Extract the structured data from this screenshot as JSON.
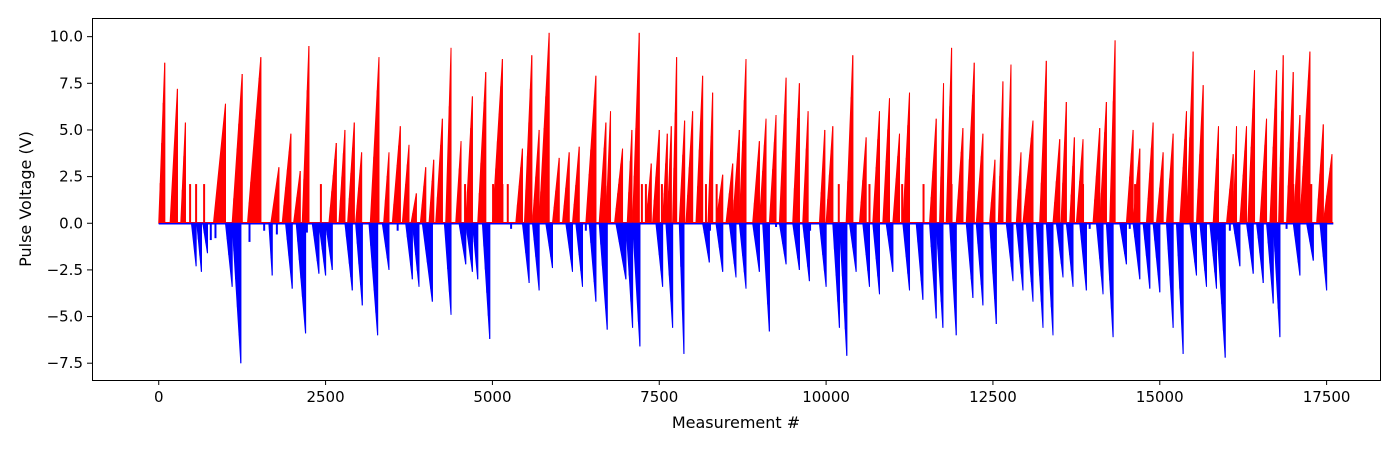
{
  "chart_data": {
    "type": "bar",
    "title": "",
    "xlabel": "Measurement #",
    "ylabel": "Pulse Voltage (V)",
    "xlim": [
      -1000,
      18300
    ],
    "ylim": [
      -8.4,
      11.0
    ],
    "x_ticks": [
      0,
      2500,
      5000,
      7500,
      10000,
      12500,
      15000,
      17500
    ],
    "x_tick_labels": [
      "0",
      "2500",
      "5000",
      "7500",
      "10000",
      "12500",
      "15000",
      "17500"
    ],
    "y_ticks": [
      -7.5,
      -5.0,
      -2.5,
      0.0,
      2.5,
      5.0,
      7.5,
      10.0
    ],
    "y_tick_labels": [
      "−7.5",
      "−5.0",
      "−2.5",
      "0.0",
      "2.5",
      "5.0",
      "7.5",
      "10.0"
    ],
    "grid": false,
    "baseline": 0,
    "series": [
      {
        "sign": "positive",
        "color": "#ff0000",
        "ramps_x0_x1_peak": [
          [
            0,
            90,
            8.6
          ],
          [
            170,
            280,
            7.2
          ],
          [
            330,
            400,
            5.4
          ],
          [
            820,
            1000,
            6.4
          ],
          [
            1100,
            1250,
            8.0
          ],
          [
            1330,
            1530,
            8.9
          ],
          [
            1680,
            1800,
            3.0
          ],
          [
            1850,
            1980,
            4.8
          ],
          [
            2020,
            2120,
            2.8
          ],
          [
            2150,
            2250,
            9.5
          ],
          [
            2550,
            2660,
            4.3
          ],
          [
            2700,
            2790,
            5.0
          ],
          [
            2830,
            2930,
            5.4
          ],
          [
            2950,
            3040,
            3.8
          ],
          [
            3170,
            3300,
            8.9
          ],
          [
            3370,
            3450,
            3.8
          ],
          [
            3500,
            3620,
            5.2
          ],
          [
            3650,
            3750,
            4.2
          ],
          [
            3780,
            3860,
            1.6
          ],
          [
            3920,
            4000,
            3.0
          ],
          [
            4050,
            4120,
            3.4
          ],
          [
            4150,
            4250,
            5.6
          ],
          [
            4300,
            4380,
            9.4
          ],
          [
            4450,
            4530,
            4.4
          ],
          [
            4600,
            4700,
            6.8
          ],
          [
            4780,
            4900,
            8.1
          ],
          [
            5000,
            5150,
            8.8
          ],
          [
            5350,
            5450,
            4.0
          ],
          [
            5480,
            5590,
            9.0
          ],
          [
            5600,
            5700,
            5.0
          ],
          [
            5700,
            5850,
            10.2
          ],
          [
            5900,
            6000,
            3.5
          ],
          [
            6050,
            6150,
            3.8
          ],
          [
            6200,
            6300,
            4.1
          ],
          [
            6400,
            6550,
            7.9
          ],
          [
            6600,
            6700,
            5.4
          ],
          [
            6700,
            6770,
            6.0
          ],
          [
            6830,
            6950,
            4.0
          ],
          [
            7020,
            7090,
            5.0
          ],
          [
            7100,
            7200,
            10.2
          ],
          [
            7300,
            7380,
            3.2
          ],
          [
            7400,
            7500,
            5.0
          ],
          [
            7550,
            7620,
            4.8
          ],
          [
            7620,
            7680,
            5.2
          ],
          [
            7700,
            7760,
            8.9
          ],
          [
            7800,
            7880,
            5.5
          ],
          [
            7900,
            8000,
            6.0
          ],
          [
            8050,
            8150,
            7.9
          ],
          [
            8230,
            8300,
            7.0
          ],
          [
            8350,
            8450,
            2.6
          ],
          [
            8500,
            8600,
            3.2
          ],
          [
            8600,
            8700,
            5.0
          ],
          [
            8700,
            8800,
            8.8
          ],
          [
            8900,
            9000,
            4.4
          ],
          [
            9000,
            9100,
            5.6
          ],
          [
            9150,
            9250,
            5.8
          ],
          [
            9300,
            9400,
            7.8
          ],
          [
            9500,
            9600,
            7.5
          ],
          [
            9650,
            9730,
            6.0
          ],
          [
            9900,
            9980,
            5.0
          ],
          [
            10000,
            10100,
            5.2
          ],
          [
            10300,
            10400,
            9.0
          ],
          [
            10500,
            10600,
            4.6
          ],
          [
            10700,
            10800,
            6.0
          ],
          [
            10850,
            10950,
            6.7
          ],
          [
            11000,
            11100,
            4.8
          ],
          [
            11150,
            11250,
            7.0
          ],
          [
            11550,
            11650,
            5.6
          ],
          [
            11700,
            11760,
            7.5
          ],
          [
            11800,
            11880,
            9.4
          ],
          [
            11950,
            12050,
            5.1
          ],
          [
            12100,
            12220,
            8.6
          ],
          [
            12250,
            12350,
            4.8
          ],
          [
            12450,
            12530,
            3.4
          ],
          [
            12580,
            12650,
            7.6
          ],
          [
            12700,
            12770,
            8.5
          ],
          [
            12850,
            12920,
            3.8
          ],
          [
            12950,
            13100,
            5.5
          ],
          [
            13200,
            13300,
            8.7
          ],
          [
            13400,
            13500,
            4.5
          ],
          [
            13520,
            13600,
            6.5
          ],
          [
            13650,
            13720,
            4.6
          ],
          [
            13750,
            13850,
            4.5
          ],
          [
            14000,
            14100,
            5.1
          ],
          [
            14100,
            14200,
            6.5
          ],
          [
            14250,
            14330,
            9.8
          ],
          [
            14500,
            14600,
            5.0
          ],
          [
            14600,
            14700,
            4.0
          ],
          [
            14800,
            14900,
            5.4
          ],
          [
            14950,
            15050,
            3.8
          ],
          [
            15100,
            15200,
            4.8
          ],
          [
            15300,
            15400,
            6.0
          ],
          [
            15400,
            15500,
            9.2
          ],
          [
            15550,
            15650,
            7.4
          ],
          [
            15800,
            15880,
            5.2
          ],
          [
            16000,
            16100,
            3.7
          ],
          [
            16100,
            16150,
            5.2
          ],
          [
            16200,
            16300,
            5.2
          ],
          [
            16320,
            16420,
            8.2
          ],
          [
            16500,
            16600,
            5.6
          ],
          [
            16650,
            16750,
            8.2
          ],
          [
            16780,
            16850,
            9.0
          ],
          [
            16900,
            17000,
            8.1
          ],
          [
            17000,
            17100,
            5.8
          ],
          [
            17100,
            17250,
            9.2
          ],
          [
            17350,
            17450,
            5.3
          ],
          [
            17450,
            17580,
            3.7
          ]
        ],
        "spikes_x_value": [
          [
            470,
            2.1
          ],
          [
            560,
            2.1
          ],
          [
            680,
            2.1
          ],
          [
            1460,
            2.1
          ],
          [
            2430,
            2.1
          ],
          [
            3990,
            2.1
          ],
          [
            4590,
            2.1
          ],
          [
            4860,
            2.1
          ],
          [
            5010,
            2.1
          ],
          [
            5090,
            2.1
          ],
          [
            5150,
            2.1
          ],
          [
            5230,
            2.1
          ],
          [
            5420,
            2.1
          ],
          [
            5560,
            2.1
          ],
          [
            6900,
            2.1
          ],
          [
            7240,
            2.1
          ],
          [
            7300,
            2.1
          ],
          [
            7540,
            2.1
          ],
          [
            8200,
            2.1
          ],
          [
            8360,
            2.1
          ],
          [
            9380,
            2.1
          ],
          [
            10190,
            2.1
          ],
          [
            10650,
            2.1
          ],
          [
            11140,
            2.1
          ],
          [
            11460,
            2.1
          ],
          [
            11880,
            2.1
          ],
          [
            13020,
            2.1
          ],
          [
            13850,
            2.1
          ],
          [
            14630,
            2.1
          ],
          [
            16360,
            2.1
          ],
          [
            17000,
            2.1
          ],
          [
            17270,
            2.1
          ]
        ]
      },
      {
        "sign": "negative",
        "color": "#0000ff",
        "ramps_x0_x1_trough": [
          [
            490,
            560,
            -2.3
          ],
          [
            570,
            640,
            -2.6
          ],
          [
            660,
            730,
            -1.6
          ],
          [
            1000,
            1100,
            -3.4
          ],
          [
            1100,
            1230,
            -7.5
          ],
          [
            1650,
            1700,
            -2.8
          ],
          [
            1900,
            2000,
            -3.5
          ],
          [
            2060,
            2200,
            -5.9
          ],
          [
            2300,
            2400,
            -2.7
          ],
          [
            2400,
            2500,
            -2.8
          ],
          [
            2500,
            2600,
            -2.5
          ],
          [
            2790,
            2900,
            -3.6
          ],
          [
            2950,
            3050,
            -4.4
          ],
          [
            3150,
            3280,
            -6.0
          ],
          [
            3350,
            3450,
            -2.5
          ],
          [
            3700,
            3800,
            -3.0
          ],
          [
            3800,
            3900,
            -3.4
          ],
          [
            3950,
            4100,
            -4.2
          ],
          [
            4280,
            4380,
            -4.9
          ],
          [
            4500,
            4600,
            -2.2
          ],
          [
            4600,
            4700,
            -2.6
          ],
          [
            4700,
            4780,
            -3.0
          ],
          [
            4850,
            4960,
            -6.2
          ],
          [
            5450,
            5550,
            -3.2
          ],
          [
            5600,
            5700,
            -3.6
          ],
          [
            5800,
            5900,
            -2.4
          ],
          [
            6100,
            6200,
            -2.6
          ],
          [
            6250,
            6350,
            -3.4
          ],
          [
            6450,
            6550,
            -4.2
          ],
          [
            6600,
            6720,
            -5.7
          ],
          [
            6850,
            7000,
            -3.0
          ],
          [
            7000,
            7100,
            -5.6
          ],
          [
            7100,
            7210,
            -6.6
          ],
          [
            7450,
            7550,
            -3.4
          ],
          [
            7600,
            7700,
            -5.6
          ],
          [
            7800,
            7870,
            -7.0
          ],
          [
            8150,
            8250,
            -2.1
          ],
          [
            8350,
            8450,
            -2.6
          ],
          [
            8550,
            8650,
            -2.9
          ],
          [
            8700,
            8800,
            -3.5
          ],
          [
            8900,
            9000,
            -2.6
          ],
          [
            9050,
            9150,
            -5.8
          ],
          [
            9300,
            9400,
            -2.2
          ],
          [
            9500,
            9600,
            -2.5
          ],
          [
            9650,
            9750,
            -3.1
          ],
          [
            9900,
            10000,
            -3.4
          ],
          [
            10100,
            10200,
            -5.6
          ],
          [
            10200,
            10310,
            -7.1
          ],
          [
            10350,
            10450,
            -2.6
          ],
          [
            10550,
            10650,
            -3.4
          ],
          [
            10700,
            10800,
            -3.8
          ],
          [
            10900,
            11000,
            -2.6
          ],
          [
            11150,
            11250,
            -3.6
          ],
          [
            11350,
            11450,
            -4.1
          ],
          [
            11550,
            11650,
            -5.1
          ],
          [
            11650,
            11750,
            -5.6
          ],
          [
            11850,
            11950,
            -6.0
          ],
          [
            12100,
            12200,
            -4.0
          ],
          [
            12250,
            12350,
            -4.4
          ],
          [
            12450,
            12550,
            -5.4
          ],
          [
            12700,
            12800,
            -3.1
          ],
          [
            12850,
            12950,
            -3.6
          ],
          [
            13000,
            13100,
            -4.2
          ],
          [
            13150,
            13250,
            -5.6
          ],
          [
            13300,
            13400,
            -6.0
          ],
          [
            13450,
            13550,
            -2.9
          ],
          [
            13600,
            13700,
            -3.4
          ],
          [
            13800,
            13900,
            -3.6
          ],
          [
            14050,
            14150,
            -3.8
          ],
          [
            14200,
            14300,
            -6.1
          ],
          [
            14400,
            14500,
            -2.2
          ],
          [
            14600,
            14700,
            -3.0
          ],
          [
            14750,
            14850,
            -3.5
          ],
          [
            14900,
            15000,
            -3.7
          ],
          [
            15100,
            15200,
            -5.6
          ],
          [
            15250,
            15350,
            -7.0
          ],
          [
            15450,
            15550,
            -2.8
          ],
          [
            15600,
            15700,
            -3.4
          ],
          [
            15750,
            15850,
            -3.5
          ],
          [
            15850,
            15980,
            -7.2
          ],
          [
            16100,
            16200,
            -2.3
          ],
          [
            16300,
            16400,
            -2.7
          ],
          [
            16450,
            16550,
            -3.2
          ],
          [
            16600,
            16700,
            -4.3
          ],
          [
            16700,
            16800,
            -6.1
          ],
          [
            17000,
            17100,
            -2.8
          ],
          [
            17200,
            17300,
            -2.0
          ],
          [
            17400,
            17500,
            -3.6
          ]
        ],
        "spikes_x_value": [
          [
            780,
            -0.9
          ],
          [
            850,
            -0.8
          ],
          [
            1360,
            -1.0
          ],
          [
            1580,
            -0.4
          ],
          [
            1770,
            -0.6
          ],
          [
            2220,
            -0.5
          ],
          [
            3580,
            -0.4
          ],
          [
            5280,
            -0.3
          ],
          [
            6400,
            -0.4
          ],
          [
            8260,
            -0.4
          ],
          [
            9250,
            -0.2
          ],
          [
            9760,
            -0.4
          ],
          [
            11200,
            -0.3
          ],
          [
            13950,
            -0.3
          ],
          [
            14550,
            -0.3
          ],
          [
            16050,
            -0.4
          ],
          [
            16900,
            -0.3
          ]
        ]
      }
    ]
  }
}
